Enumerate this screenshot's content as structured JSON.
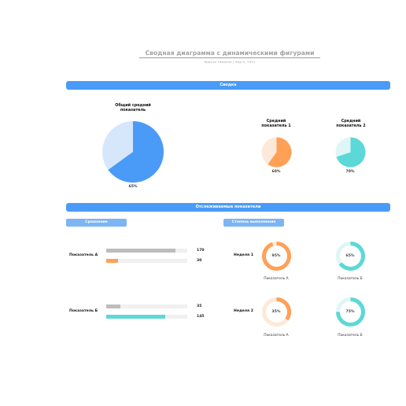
{
  "header": {
    "title": "Сводная диаграмма с динамическими фигурами",
    "subtitle": "Кристи Томпсон  |  Апр 9, 2021"
  },
  "summary": {
    "bar_label": "Сводка",
    "main_pie": {
      "label": "Общий средний показатель",
      "percent_text": "65%",
      "value": 0.65,
      "fill_color": "#4a9bf7",
      "rest_color": "#d6e7fb"
    },
    "pie1": {
      "label": "Средний показатель 1",
      "percent_text": "60%",
      "value": 0.6,
      "fill_color": "#ffa057",
      "rest_color": "#fde9d9"
    },
    "pie2": {
      "label": "Средний показатель 2",
      "percent_text": "70%",
      "value": 0.7,
      "fill_color": "#5dd8d8",
      "rest_color": "#dff6f6"
    }
  },
  "tracked": {
    "bar_label": "Отслеживаемые показатели",
    "comparison": {
      "pill_label": "Сравнение",
      "max": 200,
      "rows": [
        {
          "label": "Показатель А",
          "bars": [
            {
              "value": 170,
              "value_text": "170",
              "color": "#bdbdbd"
            },
            {
              "value": 30,
              "value_text": "30",
              "color": "#ffa057"
            }
          ]
        },
        {
          "label": "Показатель Б",
          "bars": [
            {
              "value": 35,
              "value_text": "35",
              "color": "#bdbdbd"
            },
            {
              "value": 145,
              "value_text": "145",
              "color": "#5dd8d8"
            }
          ]
        }
      ]
    },
    "completion": {
      "pill_label": "Степень выполнения",
      "rows": [
        {
          "label": "Неделя 1",
          "rings": [
            {
              "caption": "Показатель А",
              "percent_text": "95%",
              "value": 0.95,
              "color": "#ffa057",
              "track": "#fde9d9"
            },
            {
              "caption": "Показатель Б",
              "percent_text": "65%",
              "value": 0.65,
              "color": "#5dd8d8",
              "track": "#dff6f6"
            }
          ]
        },
        {
          "label": "Неделя 2",
          "rings": [
            {
              "caption": "Показатель А",
              "percent_text": "35%",
              "value": 0.35,
              "color": "#ffa057",
              "track": "#fde9d9"
            },
            {
              "caption": "Показатель Б",
              "percent_text": "75%",
              "value": 0.75,
              "color": "#5dd8d8",
              "track": "#dff6f6"
            }
          ]
        }
      ]
    }
  }
}
